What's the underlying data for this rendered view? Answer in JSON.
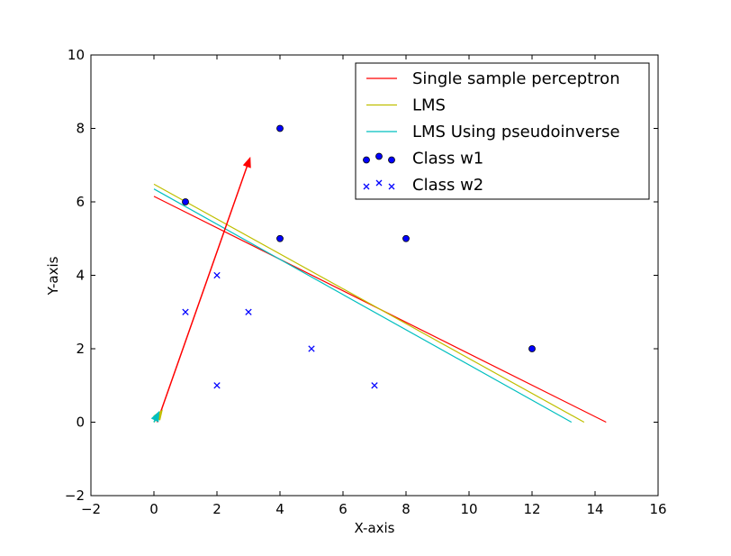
{
  "chart_data": {
    "type": "scatter",
    "title": "",
    "xlabel": "X-axis",
    "ylabel": "Y-axis",
    "xlim": [
      -2,
      16
    ],
    "ylim": [
      -2,
      10
    ],
    "xticks": [
      "−2",
      "0",
      "2",
      "4",
      "6",
      "8",
      "10",
      "12",
      "14",
      "16"
    ],
    "yticks": [
      "−2",
      "0",
      "2",
      "4",
      "6",
      "8",
      "10"
    ],
    "grid": false,
    "legend_position": "top-right",
    "lines": [
      {
        "name": "Single sample perceptron",
        "color": "#ff0000",
        "x": [
          0,
          14.35
        ],
        "y": [
          6.15,
          0
        ]
      },
      {
        "name": "LMS",
        "color": "#bfbf00",
        "x": [
          0,
          13.65
        ],
        "y": [
          6.48,
          0
        ]
      },
      {
        "name": "LMS Using pseudoinverse",
        "color": "#00bfbf",
        "x": [
          0,
          13.25
        ],
        "y": [
          6.35,
          0
        ]
      }
    ],
    "series": [
      {
        "name": "Class w1",
        "marker": "circle",
        "color": "#0000ff",
        "points": [
          [
            1,
            6
          ],
          [
            4,
            8
          ],
          [
            4,
            5
          ],
          [
            8,
            5
          ],
          [
            12,
            2
          ]
        ]
      },
      {
        "name": "Class w2",
        "marker": "x",
        "color": "#0000ff",
        "points": [
          [
            1,
            3
          ],
          [
            2,
            4
          ],
          [
            3,
            3
          ],
          [
            2,
            1
          ],
          [
            5,
            2
          ],
          [
            7,
            1
          ]
        ]
      }
    ],
    "arrows": [
      {
        "color": "#ff0000",
        "from": [
          0.1,
          0
        ],
        "to": [
          3.05,
          7.2
        ]
      },
      {
        "color": "#bfbf00",
        "from": [
          0,
          0
        ],
        "to": [
          0.26,
          0.32
        ]
      },
      {
        "color": "#00bfbf",
        "from": [
          0,
          0
        ],
        "to": [
          0.16,
          0.28
        ]
      }
    ]
  }
}
